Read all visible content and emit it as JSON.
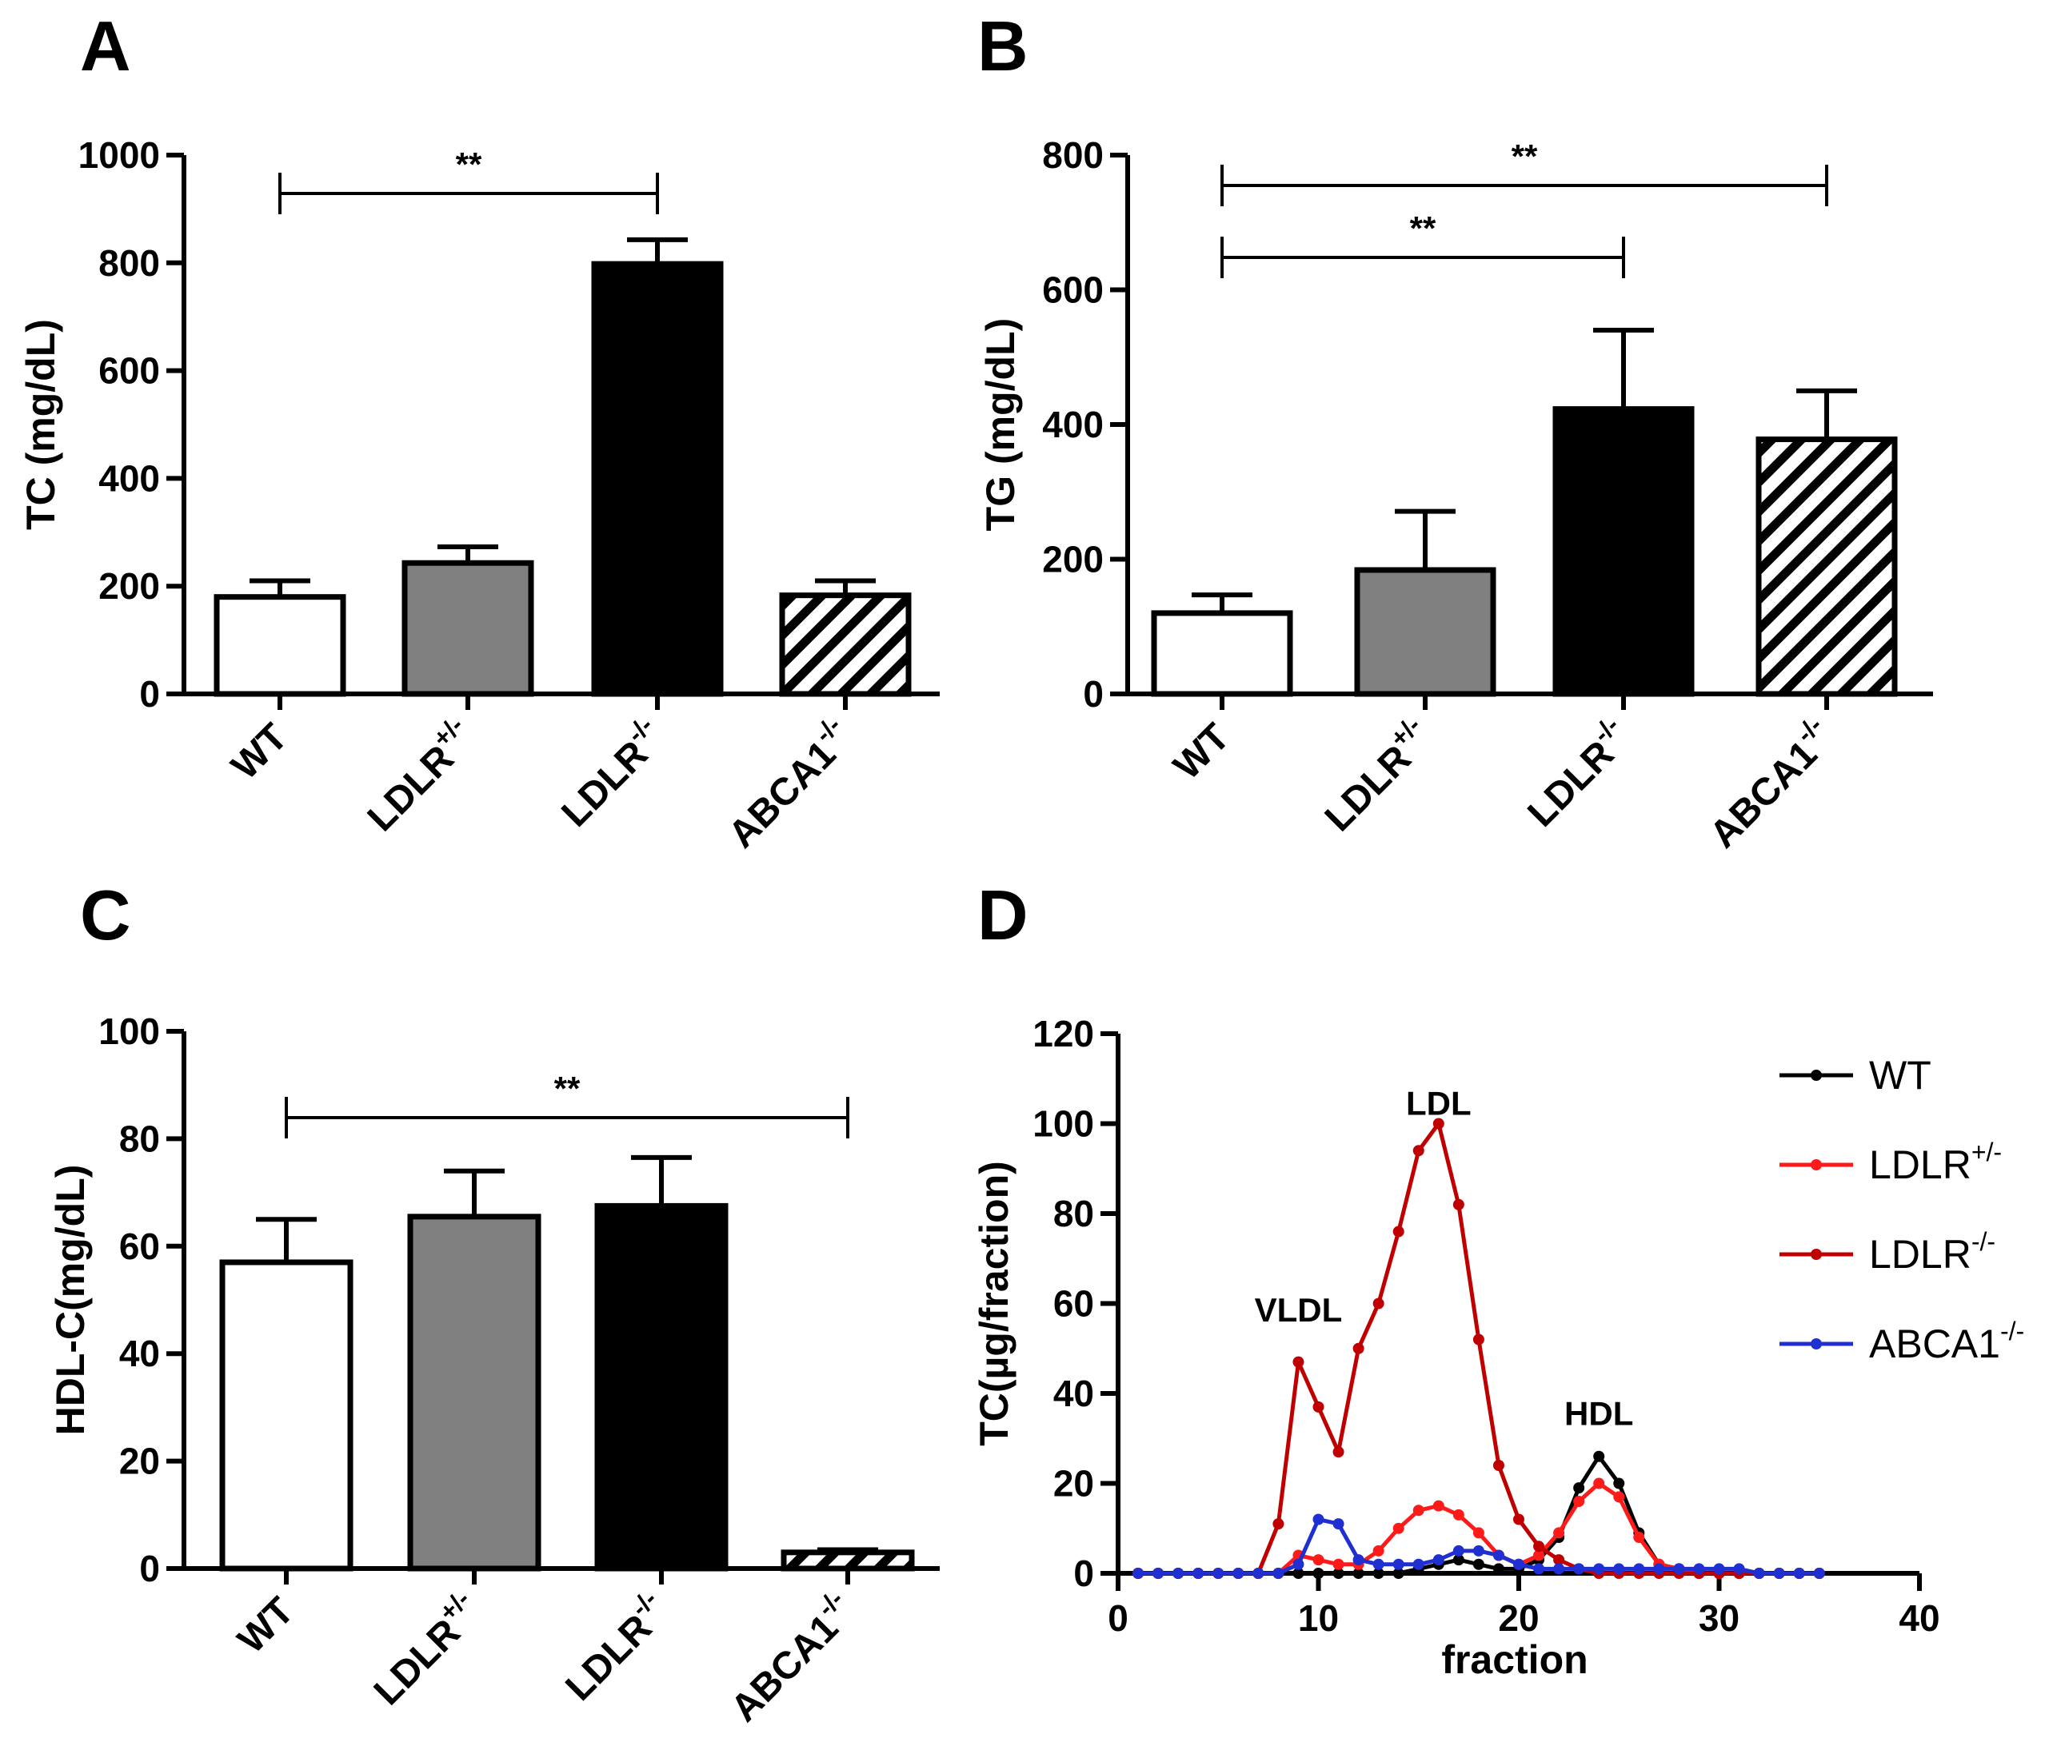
{
  "chart_data": [
    {
      "panel": "A",
      "type": "bar",
      "ylabel": "TC (mg/dL)",
      "ylim": [
        0,
        1000
      ],
      "yticks": [
        "0",
        "200",
        "400",
        "600",
        "800",
        "1000"
      ],
      "categories": [
        {
          "base": "WT",
          "sup": ""
        },
        {
          "base": "LDLR",
          "sup": "+/-"
        },
        {
          "base": "LDLR",
          "sup": "-/-"
        },
        {
          "base": "ABCA1",
          "sup": "-/-"
        }
      ],
      "values": [
        180,
        243,
        798,
        183
      ],
      "errors": [
        30,
        30,
        45,
        27
      ],
      "fills": [
        "white",
        "gray",
        "black",
        "hatch"
      ],
      "significance": [
        {
          "from": 0,
          "to": 2,
          "label": "**"
        }
      ]
    },
    {
      "panel": "B",
      "type": "bar",
      "ylabel": "TG (mg/dL)",
      "ylim": [
        0,
        800
      ],
      "yticks": [
        "0",
        "200",
        "400",
        "600",
        "800"
      ],
      "categories": [
        {
          "base": "WT",
          "sup": ""
        },
        {
          "base": "LDLR",
          "sup": "+/-"
        },
        {
          "base": "LDLR",
          "sup": "-/-"
        },
        {
          "base": "ABCA1",
          "sup": "-/-"
        }
      ],
      "values": [
        120,
        184,
        423,
        378
      ],
      "errors": [
        27,
        87,
        117,
        72
      ],
      "fills": [
        "white",
        "gray",
        "black",
        "hatch"
      ],
      "significance": [
        {
          "from": 0,
          "to": 3,
          "label": "**"
        },
        {
          "from": 0,
          "to": 2,
          "label": "**"
        }
      ]
    },
    {
      "panel": "C",
      "type": "bar",
      "ylabel": "HDL-C(mg/dL)",
      "ylim": [
        0,
        100
      ],
      "yticks": [
        "0",
        "20",
        "40",
        "60",
        "80",
        "100"
      ],
      "categories": [
        {
          "base": "WT",
          "sup": ""
        },
        {
          "base": "LDLR",
          "sup": "+/-"
        },
        {
          "base": "LDLR",
          "sup": "-/-"
        },
        {
          "base": "ABCA1",
          "sup": "-/-"
        }
      ],
      "values": [
        57,
        65.5,
        67.5,
        3
      ],
      "errors": [
        8,
        8.5,
        9,
        0.5
      ],
      "fills": [
        "white",
        "gray",
        "black",
        "hatch"
      ],
      "significance": [
        {
          "from": 0,
          "to": 3,
          "label": "**"
        }
      ]
    },
    {
      "panel": "D",
      "type": "line",
      "xlabel": "fraction",
      "ylabel": "TC(µg/fraction)",
      "xlim": [
        0,
        40
      ],
      "ylim": [
        0,
        120
      ],
      "xticks": [
        "0",
        "10",
        "20",
        "30",
        "40"
      ],
      "yticks": [
        "0",
        "20",
        "40",
        "60",
        "80",
        "100",
        "120"
      ],
      "annotations": [
        {
          "text": "LDL",
          "x": 16,
          "y": 102
        },
        {
          "text": "VLDL",
          "x": 9,
          "y": 56
        },
        {
          "text": "HDL",
          "x": 24,
          "y": 33
        }
      ],
      "series": [
        {
          "name": "WT",
          "sup": "",
          "color": "#000000",
          "x": [
            1,
            2,
            3,
            4,
            5,
            6,
            7,
            8,
            9,
            10,
            11,
            12,
            13,
            14,
            15,
            16,
            17,
            18,
            19,
            20,
            21,
            22,
            23,
            24,
            25,
            26,
            27,
            28,
            29,
            30,
            31,
            32,
            33,
            34,
            35
          ],
          "y": [
            0,
            0,
            0,
            0,
            0,
            0,
            0,
            0,
            0,
            0,
            0,
            0,
            0,
            0,
            1,
            2,
            3,
            2,
            1,
            1,
            3,
            8,
            19,
            26,
            20,
            9,
            2,
            1,
            0,
            0,
            0,
            0,
            0,
            0,
            0
          ]
        },
        {
          "name": "LDLR",
          "sup": "+/-",
          "color": "#ff1a1a",
          "x": [
            1,
            2,
            3,
            4,
            5,
            6,
            7,
            8,
            9,
            10,
            11,
            12,
            13,
            14,
            15,
            16,
            17,
            18,
            19,
            20,
            21,
            22,
            23,
            24,
            25,
            26,
            27,
            28,
            29,
            30,
            31,
            32,
            33,
            34,
            35
          ],
          "y": [
            0,
            0,
            0,
            0,
            0,
            0,
            0,
            0,
            4,
            3,
            2,
            2,
            5,
            10,
            14,
            15,
            13,
            9,
            4,
            2,
            4,
            9,
            16,
            20,
            17,
            8,
            2,
            1,
            0,
            0,
            0,
            0,
            0,
            0,
            0
          ]
        },
        {
          "name": "LDLR",
          "sup": "-/-",
          "color": "#c00000",
          "x": [
            1,
            2,
            3,
            4,
            5,
            6,
            7,
            8,
            9,
            10,
            11,
            12,
            13,
            14,
            15,
            16,
            17,
            18,
            19,
            20,
            21,
            22,
            23,
            24,
            25,
            26,
            27,
            28,
            29,
            30,
            31,
            32,
            33,
            34,
            35
          ],
          "y": [
            0,
            0,
            0,
            0,
            0,
            0,
            0,
            11,
            47,
            37,
            27,
            50,
            60,
            76,
            94,
            100,
            82,
            52,
            24,
            12,
            6,
            3,
            1,
            0,
            0,
            0,
            0,
            0,
            0,
            0,
            0,
            0,
            0,
            0,
            0
          ]
        },
        {
          "name": "ABCA1",
          "sup": "-/-",
          "color": "#1f2fd0",
          "x": [
            1,
            2,
            3,
            4,
            5,
            6,
            7,
            8,
            9,
            10,
            11,
            12,
            13,
            14,
            15,
            16,
            17,
            18,
            19,
            20,
            21,
            22,
            23,
            24,
            25,
            26,
            27,
            28,
            29,
            30,
            31,
            32,
            33,
            34,
            35
          ],
          "y": [
            0,
            0,
            0,
            0,
            0,
            0,
            0,
            0,
            2,
            12,
            11,
            3,
            2,
            2,
            2,
            3,
            5,
            5,
            4,
            2,
            1,
            1,
            1,
            1,
            1,
            1,
            1,
            1,
            1,
            1,
            1,
            0,
            0,
            0,
            0
          ]
        }
      ]
    }
  ]
}
